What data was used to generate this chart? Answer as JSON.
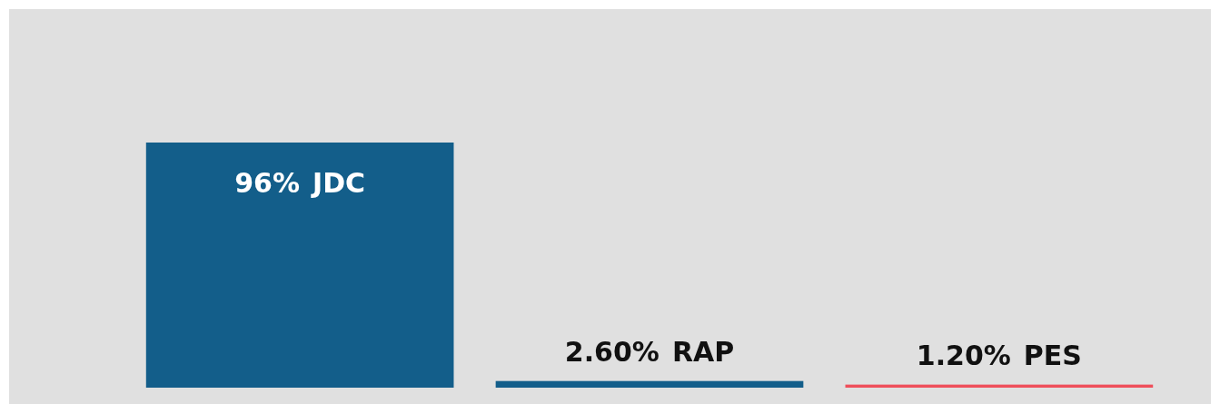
{
  "chart_data": {
    "type": "bar",
    "categories": [
      "JDC",
      "RAP",
      "PES"
    ],
    "values": [
      96,
      2.6,
      1.2
    ],
    "colors": [
      "#135e8a",
      "#135e8a",
      "#ef4f5b"
    ],
    "value_labels": [
      "96%",
      "2.60%",
      "1.20%"
    ]
  }
}
